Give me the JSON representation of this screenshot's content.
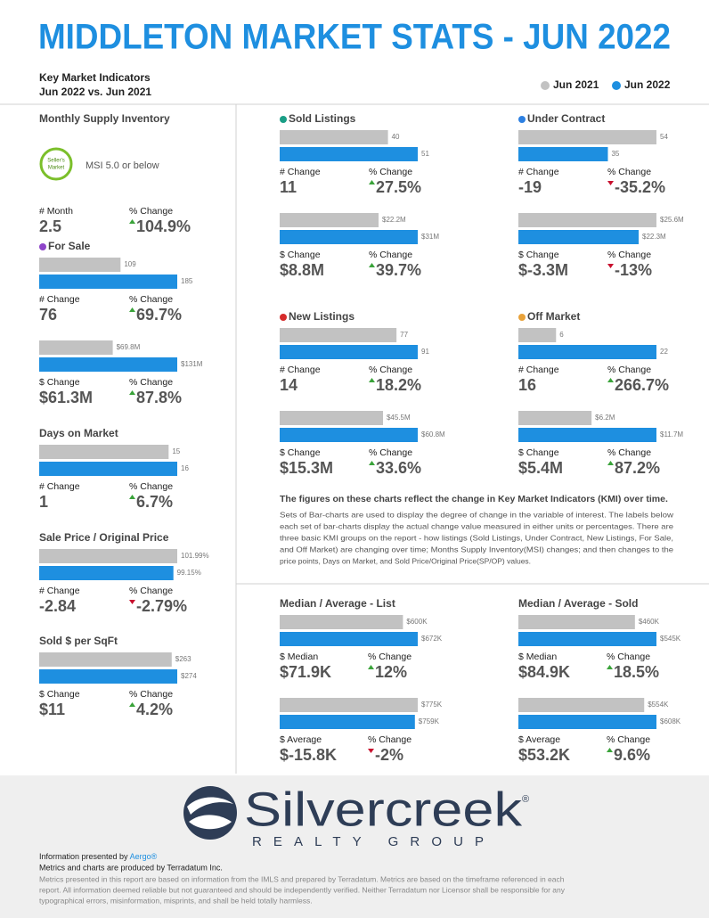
{
  "header": {
    "title": "MIDDLETON MARKET STATS - JUN 2022",
    "subtitle_lines": [
      "Key Market Indicators",
      "Jun 2022 vs. Jun 2021"
    ],
    "legend": [
      {
        "name": "Jun 2021",
        "color": "#c2c2c2"
      },
      {
        "name": "Jun 2022",
        "color": "#1e8fe0"
      }
    ]
  },
  "msi": {
    "title": "Monthly Supply Inventory",
    "badge": [
      "Seller's",
      "Market"
    ],
    "note": "MSI 5.0 or below",
    "changes": [
      {
        "label": "# Month",
        "value": "2.5"
      },
      {
        "label": "% Change",
        "value": "104.9%"
      }
    ]
  },
  "panels": [
    {
      "title": "Sold Listings",
      "dot": "#1a9e86",
      "groups": [
        {
          "values": [
            40,
            51
          ],
          "changes": [
            {
              "label": "# Change",
              "value": "11"
            },
            {
              "label": "% Change",
              "value": "27.5%"
            }
          ]
        },
        {
          "values": [
            22200000,
            31000000
          ],
          "value_labels": [
            "$22.2M",
            "$31M"
          ],
          "changes": [
            {
              "label": "$ Change",
              "value": "$8.8M"
            },
            {
              "label": "% Change",
              "value": "39.7%"
            }
          ]
        }
      ]
    },
    {
      "title": "Under Contract",
      "dot": "#2d80e2",
      "groups": [
        {
          "values": [
            54,
            35
          ],
          "changes": [
            {
              "label": "# Change",
              "value": "-19"
            },
            {
              "label": "% Change",
              "value": "-35.2%"
            }
          ]
        },
        {
          "values": [
            25600000,
            22300000
          ],
          "value_labels": [
            "$25.6M",
            "$22.3M"
          ],
          "changes": [
            {
              "label": "$ Change",
              "value": "$-3.3M"
            },
            {
              "label": "% Change",
              "value": "-13%"
            }
          ]
        }
      ]
    },
    {
      "title": "New Listings",
      "dot": "#d62b2b",
      "groups": [
        {
          "values": [
            77,
            91
          ],
          "changes": [
            {
              "label": "# Change",
              "value": "14"
            },
            {
              "label": "% Change",
              "value": "18.2%"
            }
          ]
        },
        {
          "values": [
            45500000,
            60800000
          ],
          "value_labels": [
            "$45.5M",
            "$60.8M"
          ],
          "changes": [
            {
              "label": "$ Change",
              "value": "$15.3M"
            },
            {
              "label": "% Change",
              "value": "33.6%"
            }
          ]
        }
      ]
    },
    {
      "title": "Off Market",
      "dot": "#e8a23a",
      "groups": [
        {
          "values": [
            6,
            22
          ],
          "changes": [
            {
              "label": "# Change",
              "value": "16"
            },
            {
              "label": "% Change",
              "value": "266.7%"
            }
          ]
        },
        {
          "values": [
            6200000,
            11700000
          ],
          "value_labels": [
            "$6.2M",
            "$11.7M"
          ],
          "changes": [
            {
              "label": "$ Change",
              "value": "$5.4M"
            },
            {
              "label": "% Change",
              "value": "87.2%"
            }
          ]
        }
      ]
    },
    {
      "title": "For Sale",
      "dot": "#8e44c9",
      "groups": [
        {
          "values": [
            109,
            185
          ],
          "changes": [
            {
              "label": "# Change",
              "value": "76"
            },
            {
              "label": "% Change",
              "value": "69.7%"
            }
          ]
        },
        {
          "values": [
            69800000,
            131000000
          ],
          "value_labels": [
            "$69.8M",
            "$131M"
          ],
          "changes": [
            {
              "label": "$ Change",
              "value": "$61.3M"
            },
            {
              "label": "% Change",
              "value": "87.8%"
            }
          ]
        }
      ]
    },
    {
      "title": "Days on Market",
      "groups": [
        {
          "values": [
            15,
            16
          ],
          "changes": [
            {
              "label": "# Change",
              "value": "1"
            },
            {
              "label": "% Change",
              "value": "6.7%"
            }
          ]
        }
      ]
    },
    {
      "title": "Sale Price / Original Price",
      "groups": [
        {
          "values": [
            101.99,
            99.15
          ],
          "value_labels": [
            "101.99%",
            "99.15%"
          ],
          "changes": [
            {
              "label": "# Change",
              "value": "-2.84"
            },
            {
              "label": "% Change",
              "value": "-2.79%"
            }
          ]
        }
      ]
    },
    {
      "title": "Sold $ per SqFt",
      "groups": [
        {
          "values": [
            263,
            274
          ],
          "value_labels": [
            "$263",
            "$274"
          ],
          "changes": [
            {
              "label": "$ Change",
              "value": "$11"
            },
            {
              "label": "% Change",
              "value": "4.2%"
            }
          ]
        }
      ]
    },
    {
      "title": "Median / Average - List",
      "groups": [
        {
          "values": [
            600000,
            672000
          ],
          "value_labels": [
            "$600K",
            "$672K"
          ],
          "changes": [
            {
              "label": "$ Median",
              "value": "$71.9K"
            },
            {
              "label": "% Change",
              "value": "12%"
            }
          ]
        },
        {
          "values": [
            775000,
            759000
          ],
          "value_labels": [
            "$775K",
            "$759K"
          ],
          "changes": [
            {
              "label": "$ Average",
              "value": "$-15.8K"
            },
            {
              "label": "% Change",
              "value": "-2%"
            }
          ]
        }
      ]
    },
    {
      "title": "Median / Average - Sold",
      "groups": [
        {
          "values": [
            460000,
            545000
          ],
          "value_labels": [
            "$460K",
            "$545K"
          ],
          "changes": [
            {
              "label": "$ Median",
              "value": "$84.9K"
            },
            {
              "label": "% Change",
              "value": "18.5%"
            }
          ]
        },
        {
          "values": [
            554000,
            608000
          ],
          "value_labels": [
            "$554K",
            "$608K"
          ],
          "changes": [
            {
              "label": "$ Average",
              "value": "$53.2K"
            },
            {
              "label": "% Change",
              "value": "9.6%"
            }
          ]
        }
      ]
    }
  ],
  "explanation": {
    "heading": "The figures on these charts reflect the change in Key Market Indicators (KMI) over time.",
    "lines": [
      "Sets of Bar-charts are used to display the degree of change in the variable of interest. The labels below",
      "each set of bar-charts display the actual change value measured in either units or percentages. There are",
      "three basic KMI groups on the report - how listings (Sold Listings, Under Contract, New Listings, For Sale,",
      "and Off Market) are changing over time; Months Supply Inventory(MSI) changes; and then changes to the",
      "price points, Days on Market, and Sold Price/Original Price(SP/OP) values."
    ]
  },
  "footer": {
    "logo": "Silvercreek",
    "logo_mark": "®",
    "logo_sub": "REALTY GROUP",
    "presented_by": "Information presented by",
    "presenter": "Aergo®",
    "produced_by": "Metrics and charts are produced by Terradatum Inc.",
    "disclaimer": [
      "Metrics presented in this report are based on information from the IMLS and prepared by Terradatum. Metrics are based on the timeframe referenced in each",
      "report. All information deemed reliable but not guaranteed and should be independently verified. Neither Terradatum nor Licensor shall be responsible for any",
      "typographical errors, misinformation, misprints, and shall be held totally harmless."
    ]
  }
}
